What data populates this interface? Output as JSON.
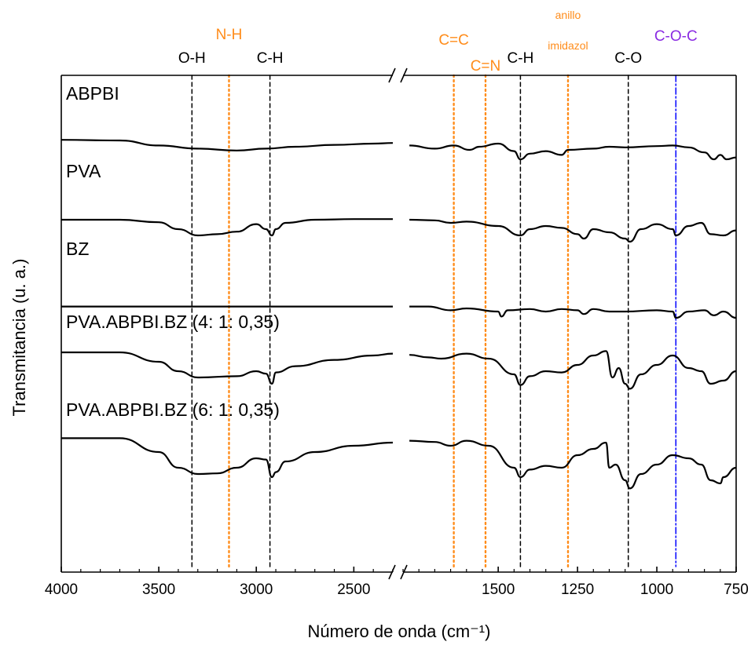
{
  "chart_data": {
    "type": "line",
    "xlabel": "Número de onda (cm⁻¹)",
    "ylabel": "Transmitancia (u. a.)",
    "x_axis_reversed": true,
    "broken_axis": true,
    "segments": [
      {
        "xlim": [
          4000,
          2300
        ],
        "ticks": [
          4000,
          3500,
          3000,
          2500
        ]
      },
      {
        "xlim": [
          1800,
          750
        ],
        "ticks": [
          1500,
          1250,
          1000,
          750
        ]
      }
    ],
    "series": [
      {
        "name": "ABPBI",
        "color": "#000000",
        "points": [
          [
            4000,
            0.36
          ],
          [
            3700,
            0.35
          ],
          [
            3500,
            0.27
          ],
          [
            3300,
            0.22
          ],
          [
            3100,
            0.19
          ],
          [
            2950,
            0.22
          ],
          [
            2800,
            0.25
          ],
          [
            2600,
            0.28
          ],
          [
            2400,
            0.3
          ],
          [
            2300,
            0.31
          ],
          [
            1780,
            0.27
          ],
          [
            1700,
            0.22
          ],
          [
            1640,
            0.27
          ],
          [
            1590,
            0.2
          ],
          [
            1560,
            0.25
          ],
          [
            1500,
            0.3
          ],
          [
            1450,
            0.18
          ],
          [
            1430,
            0.05
          ],
          [
            1400,
            0.14
          ],
          [
            1350,
            0.18
          ],
          [
            1300,
            0.12
          ],
          [
            1280,
            0.2
          ],
          [
            1200,
            0.22
          ],
          [
            1150,
            0.25
          ],
          [
            1100,
            0.24
          ],
          [
            1000,
            0.26
          ],
          [
            950,
            0.27
          ],
          [
            900,
            0.24
          ],
          [
            850,
            0.16
          ],
          [
            820,
            0.05
          ],
          [
            800,
            0.12
          ],
          [
            780,
            0.05
          ],
          [
            750,
            0.08
          ]
        ]
      },
      {
        "name": "PVA",
        "color": "#000000",
        "points": [
          [
            4000,
            0.35
          ],
          [
            3700,
            0.35
          ],
          [
            3500,
            0.31
          ],
          [
            3400,
            0.2
          ],
          [
            3300,
            0.1
          ],
          [
            3200,
            0.12
          ],
          [
            3100,
            0.16
          ],
          [
            3000,
            0.28
          ],
          [
            2950,
            0.2
          ],
          [
            2920,
            0.1
          ],
          [
            2900,
            0.2
          ],
          [
            2850,
            0.3
          ],
          [
            2700,
            0.35
          ],
          [
            2500,
            0.36
          ],
          [
            2300,
            0.36
          ],
          [
            1780,
            0.35
          ],
          [
            1700,
            0.34
          ],
          [
            1650,
            0.3
          ],
          [
            1600,
            0.32
          ],
          [
            1500,
            0.25
          ],
          [
            1430,
            0.1
          ],
          [
            1400,
            0.2
          ],
          [
            1350,
            0.25
          ],
          [
            1300,
            0.22
          ],
          [
            1250,
            0.12
          ],
          [
            1230,
            0.05
          ],
          [
            1200,
            0.2
          ],
          [
            1150,
            0.15
          ],
          [
            1100,
            0.05
          ],
          [
            1085,
            0.0
          ],
          [
            1050,
            0.2
          ],
          [
            1000,
            0.28
          ],
          [
            950,
            0.2
          ],
          [
            940,
            0.1
          ],
          [
            900,
            0.25
          ],
          [
            860,
            0.3
          ],
          [
            830,
            0.12
          ],
          [
            790,
            0.1
          ],
          [
            750,
            0.18
          ]
        ]
      },
      {
        "name": "BZ",
        "color": "#000000",
        "points": [
          [
            4000,
            0.18
          ],
          [
            3000,
            0.18
          ],
          [
            2300,
            0.18
          ],
          [
            1780,
            0.18
          ],
          [
            1720,
            0.18
          ],
          [
            1650,
            0.12
          ],
          [
            1600,
            0.15
          ],
          [
            1500,
            0.1
          ],
          [
            1490,
            0.02
          ],
          [
            1470,
            0.12
          ],
          [
            1400,
            0.14
          ],
          [
            1350,
            0.1
          ],
          [
            1300,
            0.14
          ],
          [
            1250,
            0.12
          ],
          [
            1230,
            0.06
          ],
          [
            1200,
            0.14
          ],
          [
            1150,
            0.1
          ],
          [
            1100,
            0.1
          ],
          [
            1000,
            0.12
          ],
          [
            950,
            0.1
          ],
          [
            940,
            0.0
          ],
          [
            900,
            0.1
          ],
          [
            850,
            0.12
          ],
          [
            820,
            0.04
          ],
          [
            790,
            0.1
          ],
          [
            750,
            0.0
          ]
        ]
      },
      {
        "name": "PVA.ABPBI.BZ (4: 1: 0,35)",
        "color": "#000000",
        "points": [
          [
            4000,
            0.6
          ],
          [
            3700,
            0.6
          ],
          [
            3500,
            0.45
          ],
          [
            3400,
            0.3
          ],
          [
            3300,
            0.2
          ],
          [
            3100,
            0.22
          ],
          [
            3000,
            0.3
          ],
          [
            2950,
            0.26
          ],
          [
            2920,
            0.1
          ],
          [
            2900,
            0.28
          ],
          [
            2800,
            0.38
          ],
          [
            2600,
            0.48
          ],
          [
            2400,
            0.55
          ],
          [
            2300,
            0.58
          ],
          [
            1780,
            0.56
          ],
          [
            1720,
            0.52
          ],
          [
            1680,
            0.5
          ],
          [
            1600,
            0.58
          ],
          [
            1530,
            0.5
          ],
          [
            1450,
            0.25
          ],
          [
            1430,
            0.08
          ],
          [
            1400,
            0.22
          ],
          [
            1350,
            0.3
          ],
          [
            1300,
            0.28
          ],
          [
            1250,
            0.4
          ],
          [
            1200,
            0.55
          ],
          [
            1160,
            0.62
          ],
          [
            1140,
            0.2
          ],
          [
            1120,
            0.35
          ],
          [
            1100,
            0.1
          ],
          [
            1085,
            0.02
          ],
          [
            1050,
            0.25
          ],
          [
            1000,
            0.4
          ],
          [
            950,
            0.55
          ],
          [
            900,
            0.35
          ],
          [
            860,
            0.3
          ],
          [
            830,
            0.1
          ],
          [
            790,
            0.15
          ],
          [
            750,
            0.3
          ]
        ]
      },
      {
        "name": "PVA.ABPBI.BZ (6: 1: 0,35)",
        "color": "#000000",
        "points": [
          [
            4000,
            0.82
          ],
          [
            3700,
            0.82
          ],
          [
            3500,
            0.6
          ],
          [
            3400,
            0.35
          ],
          [
            3300,
            0.25
          ],
          [
            3200,
            0.26
          ],
          [
            3100,
            0.35
          ],
          [
            3000,
            0.5
          ],
          [
            2950,
            0.48
          ],
          [
            2920,
            0.2
          ],
          [
            2900,
            0.28
          ],
          [
            2850,
            0.45
          ],
          [
            2700,
            0.6
          ],
          [
            2500,
            0.7
          ],
          [
            2300,
            0.75
          ],
          [
            1780,
            0.78
          ],
          [
            1700,
            0.76
          ],
          [
            1650,
            0.7
          ],
          [
            1600,
            0.78
          ],
          [
            1530,
            0.7
          ],
          [
            1450,
            0.35
          ],
          [
            1430,
            0.2
          ],
          [
            1400,
            0.32
          ],
          [
            1350,
            0.38
          ],
          [
            1300,
            0.35
          ],
          [
            1250,
            0.55
          ],
          [
            1200,
            0.65
          ],
          [
            1160,
            0.75
          ],
          [
            1150,
            0.35
          ],
          [
            1130,
            0.4
          ],
          [
            1100,
            0.15
          ],
          [
            1085,
            0.02
          ],
          [
            1050,
            0.25
          ],
          [
            1000,
            0.4
          ],
          [
            950,
            0.55
          ],
          [
            900,
            0.5
          ],
          [
            860,
            0.4
          ],
          [
            830,
            0.15
          ],
          [
            800,
            0.1
          ],
          [
            790,
            0.2
          ],
          [
            750,
            0.35
          ]
        ]
      }
    ],
    "reference_lines": [
      {
        "x": 3330,
        "label": "O-H",
        "color": "#000000",
        "style": "dashed"
      },
      {
        "x": 3140,
        "label": "N-H",
        "color": "#ff8c1a",
        "style": "dotted"
      },
      {
        "x": 2930,
        "label": "C-H",
        "color": "#000000",
        "style": "dashed"
      },
      {
        "x": 1640,
        "label": "C=C",
        "color": "#ff8c1a",
        "style": "dotted"
      },
      {
        "x": 1540,
        "label": "C=N",
        "color": "#ff8c1a",
        "style": "dotted"
      },
      {
        "x": 1430,
        "label": "C-H",
        "color": "#000000",
        "style": "dashed"
      },
      {
        "x": 1280,
        "label": "anillo imidazol",
        "color": "#ff8c1a",
        "style": "dotted"
      },
      {
        "x": 1090,
        "label": "C-O",
        "color": "#000000",
        "style": "dashed"
      },
      {
        "x": 940,
        "label": "C-O-C",
        "color": "#0000ff",
        "style": "dashdot"
      }
    ]
  }
}
